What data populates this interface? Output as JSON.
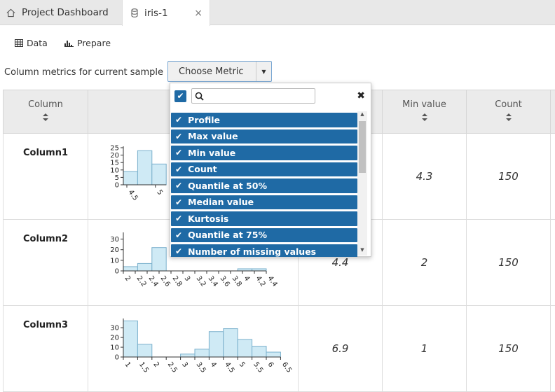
{
  "tabs": [
    {
      "label": "Project Dashboard"
    },
    {
      "label": "iris-1",
      "close": "×"
    }
  ],
  "toolbar": {
    "data_label": "Data",
    "prepare_label": "Prepare"
  },
  "metrics": {
    "label": "Column metrics for current sample",
    "choose_label": "Choose Metric"
  },
  "table": {
    "headers": [
      "Column",
      "",
      "",
      "Min value",
      "Count"
    ],
    "rows": [
      {
        "name": "Column1",
        "max": "",
        "min": "4.3",
        "count": "150"
      },
      {
        "name": "Column2",
        "max": "4.4",
        "min": "2",
        "count": "150"
      },
      {
        "name": "Column3",
        "max": "6.9",
        "min": "1",
        "count": "150"
      }
    ]
  },
  "dropdown": {
    "search_placeholder": "",
    "options": [
      "Profile",
      "Max value",
      "Min value",
      "Count",
      "Quantile at 50%",
      "Median value",
      "Kurtosis",
      "Quantile at 75%",
      "Number of missing values"
    ]
  },
  "chart_data": [
    {
      "type": "bar",
      "ylim": [
        0,
        25
      ],
      "yticks": [
        "0",
        "5",
        "10",
        "15",
        "20",
        "25"
      ],
      "xticks": [
        "4.5",
        "5"
      ],
      "values": [
        9,
        23,
        14
      ]
    },
    {
      "type": "bar",
      "ylim": [
        0,
        35
      ],
      "yticks": [
        "0",
        "10",
        "20",
        "30"
      ],
      "xticks": [
        "2",
        "2.2",
        "2.4",
        "2.6",
        "2.8",
        "3",
        "3.2",
        "3.4",
        "3.6",
        "3.8",
        "4",
        "4.2",
        "4.4"
      ],
      "values": [
        4,
        7,
        22,
        0,
        0,
        0,
        0,
        0,
        2,
        2
      ]
    },
    {
      "type": "bar",
      "ylim": [
        0,
        38
      ],
      "yticks": [
        "0",
        "10",
        "20",
        "30"
      ],
      "xticks": [
        "1",
        "1.5",
        "2",
        "2.5",
        "3",
        "3.5",
        "4",
        "4.5",
        "5",
        "5.5",
        "6",
        "6.5"
      ],
      "values": [
        37,
        13,
        0,
        0,
        3,
        8,
        26,
        29,
        18,
        11,
        5
      ]
    }
  ]
}
